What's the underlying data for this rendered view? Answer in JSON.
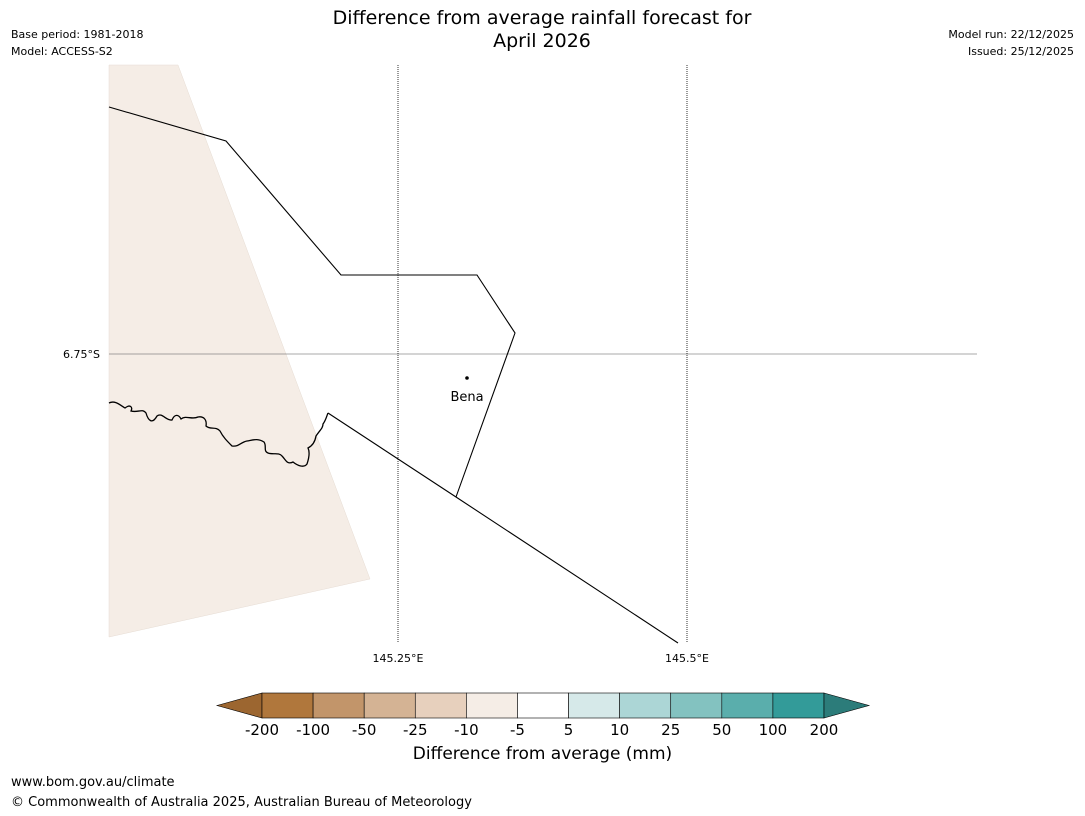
{
  "header": {
    "title_line1": "Difference from average rainfall forecast for",
    "title_line2": "April 2026",
    "base_period": "Base period: 1981-2018",
    "model": "Model: ACCESS-S2",
    "model_run": "Model run: 22/12/2025",
    "issued": "Issued: 25/12/2025"
  },
  "map": {
    "lat_label": "6.75°S",
    "lon_labels": [
      "145.25°E",
      "145.5°E"
    ],
    "place_label": "Bena",
    "land_fill_color": "#f5ede6"
  },
  "colorbar": {
    "label": "Difference from average (mm)",
    "ticks": [
      "-200",
      "-100",
      "-50",
      "-25",
      "-10",
      "-5",
      "5",
      "10",
      "25",
      "50",
      "100",
      "200"
    ],
    "colors": [
      "#9c6630",
      "#b0773c",
      "#c2956a",
      "#d4b394",
      "#e7d0bd",
      "#f5ede6",
      "#ffffff",
      "#d6e9e9",
      "#acd6d6",
      "#83c2c0",
      "#5aaeac",
      "#339b99",
      "#2c7c7a"
    ]
  },
  "footer": {
    "url": "www.bom.gov.au/climate",
    "copyright": "© Commonwealth of Australia 2025, Australian Bureau of Meteorology"
  }
}
